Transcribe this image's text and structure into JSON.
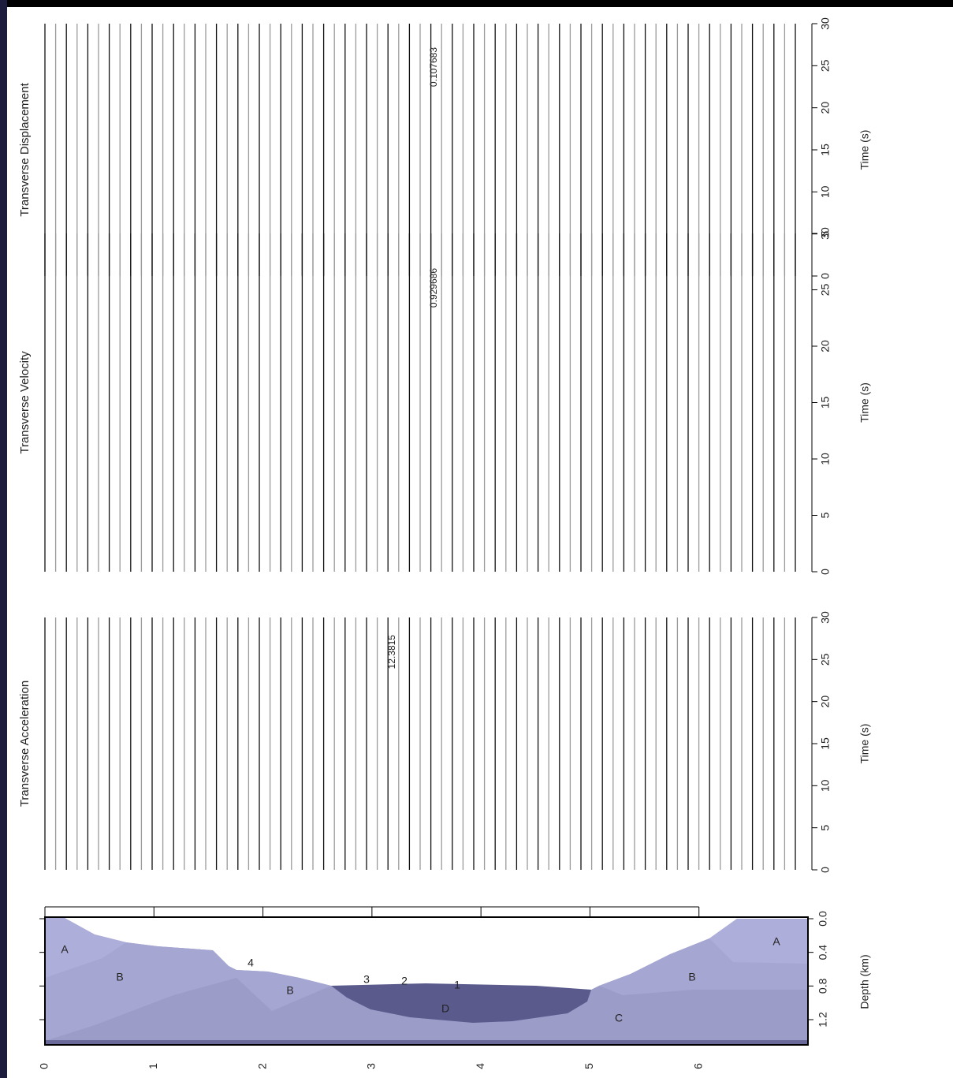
{
  "chart_data": [
    {
      "type": "seismogram",
      "title": "Transverse Displacement",
      "ylabel": "Time (s)",
      "annotation": "0.107683",
      "ylim": [
        0,
        30
      ],
      "yticks": [
        0,
        5,
        10,
        15,
        20,
        25,
        30
      ]
    },
    {
      "type": "seismogram",
      "title": "Transverse Velocity",
      "ylabel": "Time (s)",
      "annotation": "0.929686",
      "ylim": [
        0,
        30
      ],
      "yticks": [
        0,
        5,
        10,
        15,
        20,
        25,
        30
      ]
    },
    {
      "type": "seismogram",
      "title": "Transverse Acceleration",
      "ylabel": "Time (s)",
      "annotation": "12.3815",
      "ylim": [
        0,
        30
      ],
      "yticks": [
        0,
        5,
        10,
        15,
        20,
        25,
        30
      ]
    },
    {
      "type": "cross-section",
      "ylabel": "Depth (km)",
      "xlim": [
        0,
        7
      ],
      "xticks": [
        0,
        1,
        2,
        3,
        4,
        5,
        6
      ],
      "ylim": [
        0,
        1.5
      ],
      "yticks": [
        {
          "value": 0,
          "label": "0.0"
        },
        0.4,
        0.8,
        1.2
      ],
      "region_labels": [
        "A",
        "B",
        "4",
        "B",
        "3",
        "2",
        "1",
        "D",
        "C",
        "B",
        "A"
      ]
    }
  ]
}
